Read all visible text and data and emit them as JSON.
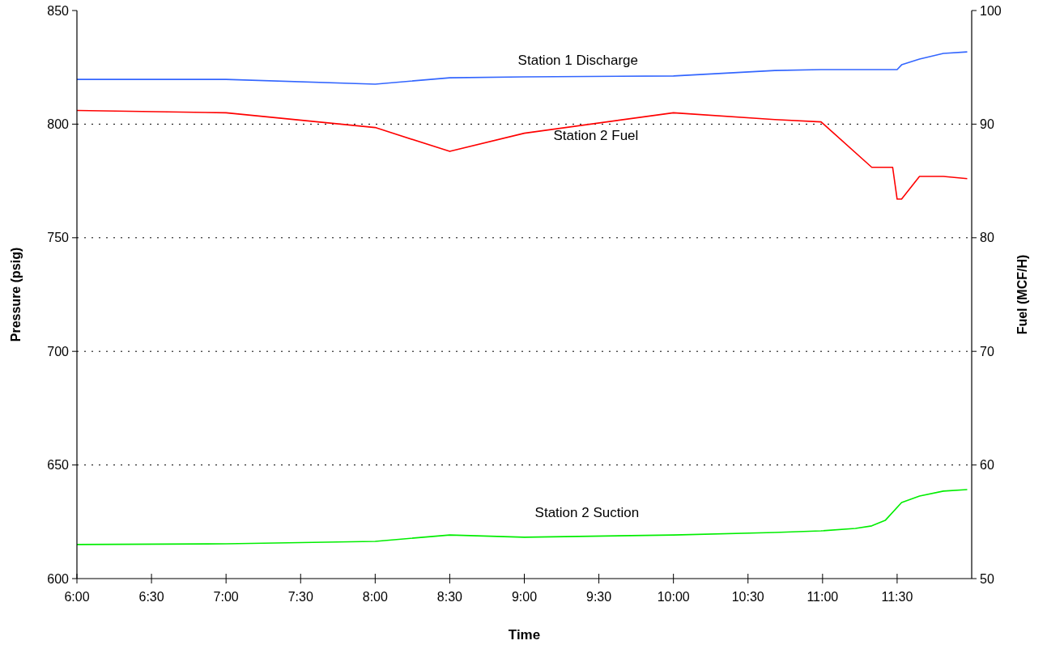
{
  "chart_data": {
    "type": "line",
    "xlabel": "Time",
    "ylabel": "Pressure (psig)",
    "y2label": "Fuel (MCF/H)",
    "xlim": [
      6,
      12
    ],
    "xticks": [
      {
        "value": 6,
        "label": "6:00"
      },
      {
        "value": 6.5,
        "label": "6:30"
      },
      {
        "value": 7,
        "label": "7:00"
      },
      {
        "value": 7.5,
        "label": "7:30"
      },
      {
        "value": 8,
        "label": "8:00"
      },
      {
        "value": 8.5,
        "label": "8:30"
      },
      {
        "value": 9,
        "label": "9:00"
      },
      {
        "value": 9.5,
        "label": "9:30"
      },
      {
        "value": 10,
        "label": "10:00"
      },
      {
        "value": 10.5,
        "label": "10:30"
      },
      {
        "value": 11,
        "label": "11:00"
      },
      {
        "value": 11.5,
        "label": "11:30"
      }
    ],
    "ylim": [
      600,
      850
    ],
    "yticks": [
      600,
      650,
      700,
      750,
      800,
      850
    ],
    "y2lim": [
      50,
      100
    ],
    "y2ticks": [
      50,
      60,
      70,
      80,
      90,
      100
    ],
    "grid": "y",
    "marker": "none",
    "line_style": "solid",
    "series": [
      {
        "name": "Station 1 Discharge",
        "color": "#3366ff",
        "x": [
          6,
          7,
          8,
          8.5,
          9,
          10,
          10.68,
          10.99,
          11.5,
          11.53,
          11.65,
          11.81,
          11.97
        ],
        "values": [
          819.7,
          819.7,
          817.6,
          820.4,
          820.8,
          821.2,
          823.6,
          824,
          824,
          826.1,
          828.6,
          831.1,
          831.8
        ]
      },
      {
        "name": "Station  2 Fuel",
        "color": "#ff0000",
        "axis": "y2",
        "x": [
          6,
          7,
          8,
          8.5,
          9,
          10,
          10.68,
          10.99,
          11.33,
          11.47,
          11.5,
          11.53,
          11.65,
          11.81,
          11.97
        ],
        "values": [
          91.2,
          91,
          89.7,
          87.6,
          89.2,
          91,
          90.4,
          90.2,
          86.2,
          86.2,
          83.4,
          83.4,
          85.4,
          85.4,
          85.2
        ]
      },
      {
        "name": "Station 2 Suction",
        "color": "#00ee00",
        "x": [
          6,
          7,
          8,
          8.5,
          9,
          10,
          10.68,
          10.99,
          11.22,
          11.33,
          11.42,
          11.53,
          11.65,
          11.81,
          11.97
        ],
        "values": [
          615,
          615.3,
          616.4,
          619.2,
          618.2,
          619.2,
          620.3,
          621,
          622.1,
          623.2,
          625.6,
          633.5,
          636.3,
          638.5,
          639.2
        ]
      }
    ]
  }
}
